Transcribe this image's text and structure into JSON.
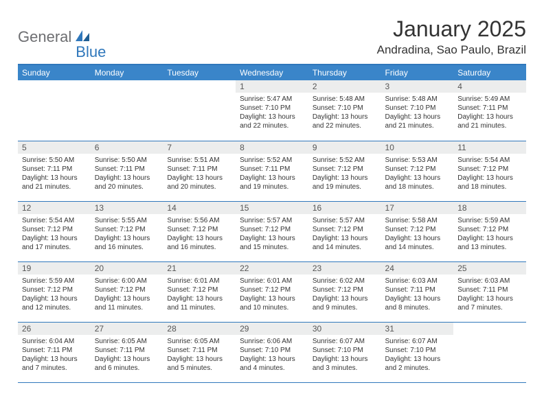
{
  "logo": {
    "word1": "General",
    "word2": "Blue"
  },
  "title": "January 2025",
  "location": "Andradina, Sao Paulo, Brazil",
  "colors": {
    "header_bg": "#3a85c9",
    "rule": "#2f77bb",
    "daynum_bg": "#eceded",
    "logo_gray": "#6d6e71",
    "logo_blue": "#2f77bb"
  },
  "weekdays": [
    "Sunday",
    "Monday",
    "Tuesday",
    "Wednesday",
    "Thursday",
    "Friday",
    "Saturday"
  ],
  "weeks": [
    [
      null,
      null,
      null,
      {
        "n": "1",
        "sr": "5:47 AM",
        "ss": "7:10 PM",
        "dl": "13 hours and 22 minutes."
      },
      {
        "n": "2",
        "sr": "5:48 AM",
        "ss": "7:10 PM",
        "dl": "13 hours and 22 minutes."
      },
      {
        "n": "3",
        "sr": "5:48 AM",
        "ss": "7:10 PM",
        "dl": "13 hours and 21 minutes."
      },
      {
        "n": "4",
        "sr": "5:49 AM",
        "ss": "7:11 PM",
        "dl": "13 hours and 21 minutes."
      }
    ],
    [
      {
        "n": "5",
        "sr": "5:50 AM",
        "ss": "7:11 PM",
        "dl": "13 hours and 21 minutes."
      },
      {
        "n": "6",
        "sr": "5:50 AM",
        "ss": "7:11 PM",
        "dl": "13 hours and 20 minutes."
      },
      {
        "n": "7",
        "sr": "5:51 AM",
        "ss": "7:11 PM",
        "dl": "13 hours and 20 minutes."
      },
      {
        "n": "8",
        "sr": "5:52 AM",
        "ss": "7:11 PM",
        "dl": "13 hours and 19 minutes."
      },
      {
        "n": "9",
        "sr": "5:52 AM",
        "ss": "7:12 PM",
        "dl": "13 hours and 19 minutes."
      },
      {
        "n": "10",
        "sr": "5:53 AM",
        "ss": "7:12 PM",
        "dl": "13 hours and 18 minutes."
      },
      {
        "n": "11",
        "sr": "5:54 AM",
        "ss": "7:12 PM",
        "dl": "13 hours and 18 minutes."
      }
    ],
    [
      {
        "n": "12",
        "sr": "5:54 AM",
        "ss": "7:12 PM",
        "dl": "13 hours and 17 minutes."
      },
      {
        "n": "13",
        "sr": "5:55 AM",
        "ss": "7:12 PM",
        "dl": "13 hours and 16 minutes."
      },
      {
        "n": "14",
        "sr": "5:56 AM",
        "ss": "7:12 PM",
        "dl": "13 hours and 16 minutes."
      },
      {
        "n": "15",
        "sr": "5:57 AM",
        "ss": "7:12 PM",
        "dl": "13 hours and 15 minutes."
      },
      {
        "n": "16",
        "sr": "5:57 AM",
        "ss": "7:12 PM",
        "dl": "13 hours and 14 minutes."
      },
      {
        "n": "17",
        "sr": "5:58 AM",
        "ss": "7:12 PM",
        "dl": "13 hours and 14 minutes."
      },
      {
        "n": "18",
        "sr": "5:59 AM",
        "ss": "7:12 PM",
        "dl": "13 hours and 13 minutes."
      }
    ],
    [
      {
        "n": "19",
        "sr": "5:59 AM",
        "ss": "7:12 PM",
        "dl": "13 hours and 12 minutes."
      },
      {
        "n": "20",
        "sr": "6:00 AM",
        "ss": "7:12 PM",
        "dl": "13 hours and 11 minutes."
      },
      {
        "n": "21",
        "sr": "6:01 AM",
        "ss": "7:12 PM",
        "dl": "13 hours and 11 minutes."
      },
      {
        "n": "22",
        "sr": "6:01 AM",
        "ss": "7:12 PM",
        "dl": "13 hours and 10 minutes."
      },
      {
        "n": "23",
        "sr": "6:02 AM",
        "ss": "7:12 PM",
        "dl": "13 hours and 9 minutes."
      },
      {
        "n": "24",
        "sr": "6:03 AM",
        "ss": "7:11 PM",
        "dl": "13 hours and 8 minutes."
      },
      {
        "n": "25",
        "sr": "6:03 AM",
        "ss": "7:11 PM",
        "dl": "13 hours and 7 minutes."
      }
    ],
    [
      {
        "n": "26",
        "sr": "6:04 AM",
        "ss": "7:11 PM",
        "dl": "13 hours and 7 minutes."
      },
      {
        "n": "27",
        "sr": "6:05 AM",
        "ss": "7:11 PM",
        "dl": "13 hours and 6 minutes."
      },
      {
        "n": "28",
        "sr": "6:05 AM",
        "ss": "7:11 PM",
        "dl": "13 hours and 5 minutes."
      },
      {
        "n": "29",
        "sr": "6:06 AM",
        "ss": "7:10 PM",
        "dl": "13 hours and 4 minutes."
      },
      {
        "n": "30",
        "sr": "6:07 AM",
        "ss": "7:10 PM",
        "dl": "13 hours and 3 minutes."
      },
      {
        "n": "31",
        "sr": "6:07 AM",
        "ss": "7:10 PM",
        "dl": "13 hours and 2 minutes."
      },
      null
    ]
  ],
  "labels": {
    "sunrise": "Sunrise:",
    "sunset": "Sunset:",
    "daylight": "Daylight:"
  }
}
